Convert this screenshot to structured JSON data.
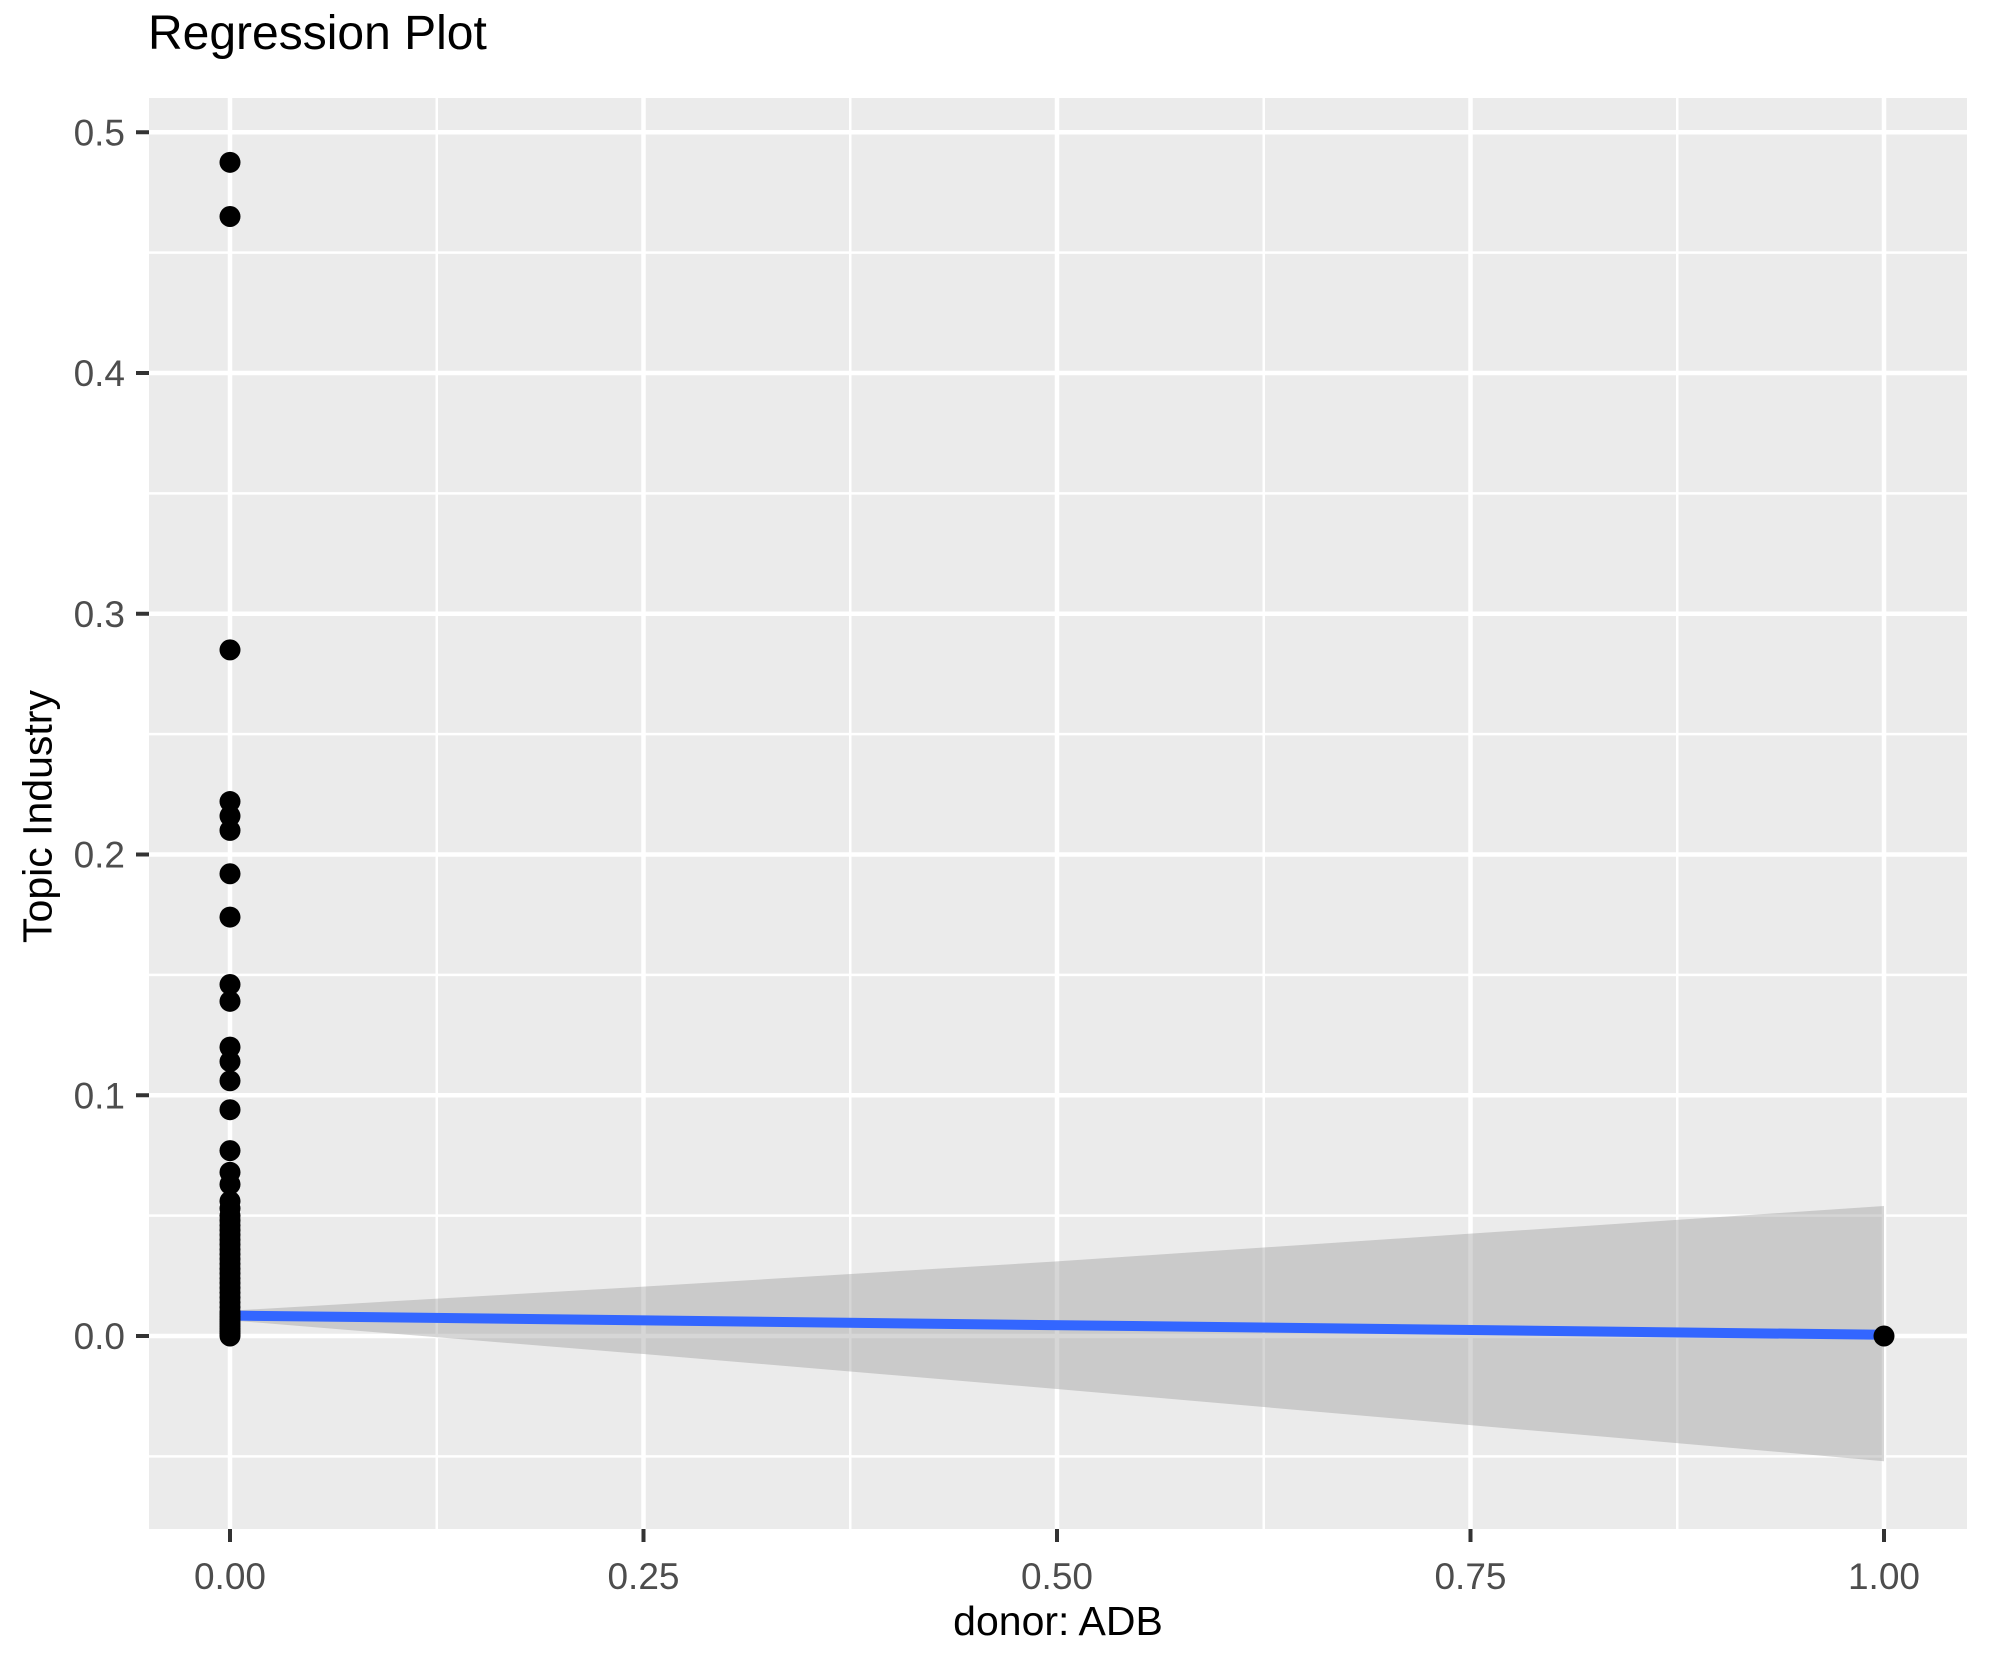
{
  "title": "Regression Plot",
  "chart_data": {
    "type": "scatter",
    "title": "Regression Plot",
    "xlabel": "donor: ADB",
    "ylabel": "Topic Industry",
    "legend_position": "none",
    "grid": "major and minor, white on gray panel",
    "x_axis": {
      "lim": [
        -0.049,
        1.0502
      ],
      "ticks": [
        0.0,
        0.25,
        0.5,
        0.75,
        1.0
      ],
      "tick_labels": [
        "0.00",
        "0.25",
        "0.50",
        "0.75",
        "1.00"
      ],
      "minor_ticks": [
        0.125,
        0.375,
        0.625,
        0.875
      ]
    },
    "y_axis": {
      "lim": [
        -0.0802,
        0.5143
      ],
      "ticks": [
        0.0,
        0.1,
        0.2,
        0.3,
        0.4,
        0.5
      ],
      "tick_labels": [
        "0.0",
        "0.1",
        "0.2",
        "0.3",
        "0.4",
        "0.5"
      ],
      "minor_ticks": [
        -0.05,
        0.05,
        0.15,
        0.25,
        0.35,
        0.45
      ]
    },
    "series": [
      {
        "name": "observations",
        "type": "scatter",
        "color": "#000000",
        "point_radius_px": 10.5,
        "points": [
          [
            0,
            0.4875
          ],
          [
            0,
            0.465
          ],
          [
            0,
            0.285
          ],
          [
            0,
            0.222
          ],
          [
            0,
            0.216
          ],
          [
            0,
            0.21
          ],
          [
            0,
            0.192
          ],
          [
            0,
            0.174
          ],
          [
            0,
            0.146
          ],
          [
            0,
            0.139
          ],
          [
            0,
            0.12
          ],
          [
            0,
            0.114
          ],
          [
            0,
            0.106
          ],
          [
            0,
            0.094
          ],
          [
            0,
            0.077
          ],
          [
            0,
            0.068
          ],
          [
            0,
            0.063
          ],
          [
            0,
            0.056
          ],
          [
            0,
            0.053
          ],
          [
            0,
            0.05
          ],
          [
            0,
            0.048
          ],
          [
            0,
            0.046
          ],
          [
            0,
            0.044
          ],
          [
            0,
            0.042
          ],
          [
            0,
            0.04
          ],
          [
            0,
            0.038
          ],
          [
            0,
            0.036
          ],
          [
            0,
            0.034
          ],
          [
            0,
            0.032
          ],
          [
            0,
            0.03
          ],
          [
            0,
            0.028
          ],
          [
            0,
            0.026
          ],
          [
            0,
            0.024
          ],
          [
            0,
            0.022
          ],
          [
            0,
            0.02
          ],
          [
            0,
            0.018
          ],
          [
            0,
            0.016
          ],
          [
            0,
            0.014
          ],
          [
            0,
            0.012
          ],
          [
            0,
            0.01
          ],
          [
            0,
            0.009
          ],
          [
            0,
            0.008
          ],
          [
            0,
            0.007
          ],
          [
            0,
            0.006
          ],
          [
            0,
            0.005
          ],
          [
            0,
            0.004
          ],
          [
            0,
            0.003
          ],
          [
            0,
            0.002
          ],
          [
            0,
            0.001
          ],
          [
            0,
            0.0
          ],
          [
            1,
            0.0
          ]
        ]
      },
      {
        "name": "linear-fit",
        "type": "line",
        "color": "#3366FF",
        "stroke_width_px": 10,
        "x": [
          0,
          1
        ],
        "y": [
          0.0085,
          0.0005
        ]
      },
      {
        "name": "confidence-band",
        "type": "area",
        "color": "#999999",
        "opacity": 0.4,
        "x": [
          0,
          0.25,
          0.5,
          0.75,
          1
        ],
        "upper": [
          0.0105,
          0.0205,
          0.031,
          0.0425,
          0.054
        ],
        "lower": [
          0.0065,
          -0.0075,
          -0.022,
          -0.037,
          -0.052
        ]
      }
    ],
    "theme": {
      "panel_bg": "#EBEBEB",
      "grid_major_color": "#FFFFFF",
      "grid_minor_color": "#FFFFFF",
      "grid_major_width": 4.5,
      "grid_minor_width": 2.5,
      "tick_color": "#333333",
      "tick_label_color": "#4D4D4D",
      "tick_label_size": 37,
      "title_color": "#000000",
      "axis_title_color": "#000000"
    }
  }
}
